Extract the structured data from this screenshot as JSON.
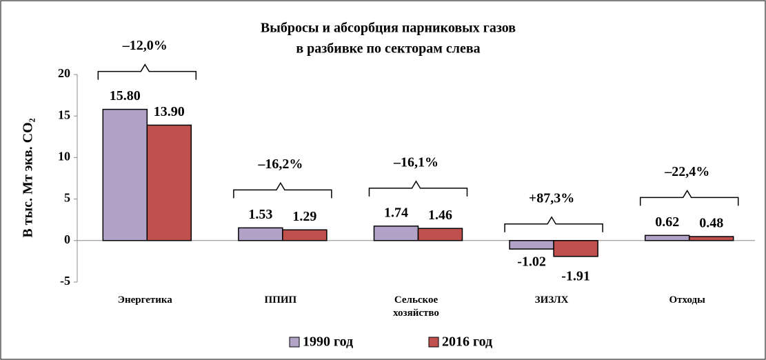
{
  "chart_data": {
    "type": "bar",
    "title": [
      "Выбросы и абсорбция парниковых газов",
      "в разбивке по секторам слева"
    ],
    "y_label": "В тыс. Мт экв. CO₂",
    "categories": [
      "Энергетика",
      "ППИП",
      "Сельское хозяйство",
      "ЗИЗЛХ",
      "Отходы"
    ],
    "series": [
      {
        "name": "1990 год",
        "color": "#b3a2c7",
        "values": [
          15.8,
          1.53,
          1.74,
          -1.02,
          0.62
        ],
        "value_labels": [
          "15.80",
          "1.53",
          "1.74",
          "-1.02",
          "0.62"
        ]
      },
      {
        "name": "2016 год",
        "color": "#c0504d",
        "values": [
          13.9,
          1.29,
          1.46,
          -1.91,
          0.48
        ],
        "value_labels": [
          "13.90",
          "1.29",
          "1.46",
          "-1.91",
          "0.48"
        ]
      }
    ],
    "annotations": [
      "–12,0%",
      "–16,2%",
      "–16,1%",
      "+87,3%",
      "–22,4%"
    ],
    "ylim": [
      -5,
      20
    ],
    "yticks": [
      -5,
      0,
      5,
      10,
      15,
      20
    ],
    "legend": "bottom"
  }
}
